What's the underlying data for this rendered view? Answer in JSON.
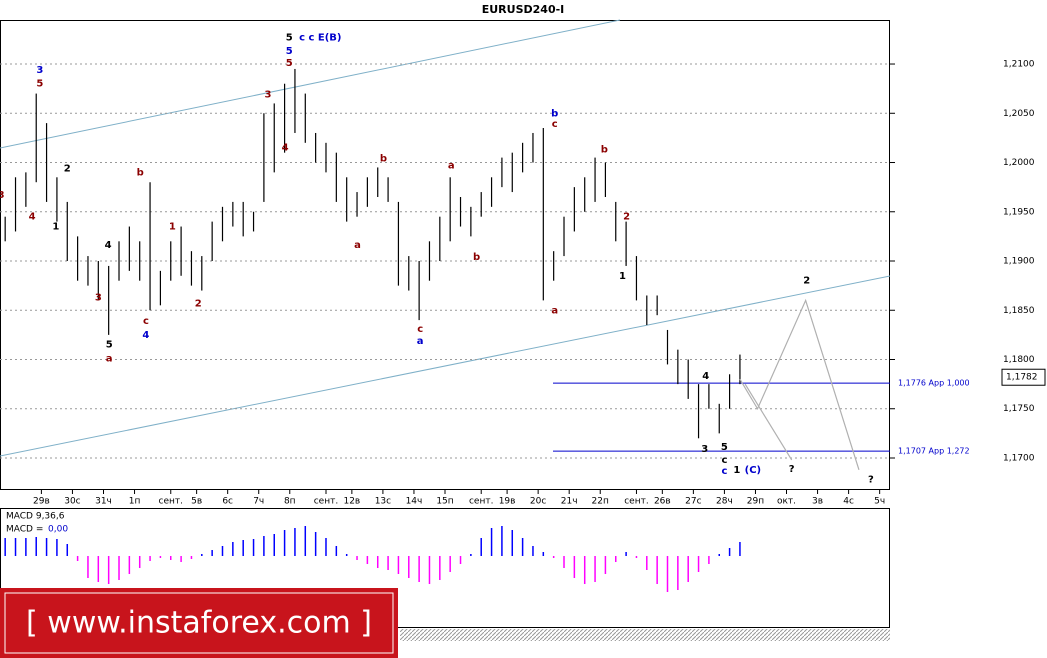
{
  "chart_data": {
    "type": "hilo",
    "title": "EURUSD240-I",
    "color": "#000000",
    "grid": true,
    "x": [
      0,
      2,
      4,
      6,
      8,
      10,
      12,
      14,
      16,
      18,
      20,
      22,
      24,
      26,
      28,
      30,
      32,
      34,
      36,
      38,
      40,
      42,
      44,
      46,
      48,
      50,
      52,
      54,
      56,
      58,
      60,
      62,
      64,
      66,
      68,
      70,
      72,
      74,
      76,
      78,
      80,
      82,
      84,
      86,
      88,
      90,
      92,
      94,
      96,
      98,
      100,
      102,
      104,
      106,
      108,
      110,
      112,
      114,
      116,
      118,
      120,
      122,
      124,
      126,
      128,
      130,
      132,
      134,
      136,
      138,
      140,
      142
    ],
    "high": [
      1.1945,
      1.1985,
      1.199,
      1.207,
      1.204,
      1.1985,
      1.196,
      1.1925,
      1.1905,
      1.19,
      1.1895,
      1.192,
      1.1935,
      1.192,
      1.198,
      1.189,
      1.192,
      1.1935,
      1.191,
      1.1905,
      1.194,
      1.1955,
      1.196,
      1.196,
      1.195,
      1.205,
      1.206,
      1.208,
      1.2095,
      1.207,
      1.203,
      1.202,
      1.201,
      1.1985,
      1.197,
      1.1985,
      1.1995,
      1.1985,
      1.196,
      1.1905,
      1.19,
      1.192,
      1.1945,
      1.1985,
      1.1965,
      1.1955,
      1.197,
      1.1985,
      1.2005,
      1.201,
      1.202,
      1.203,
      1.2035,
      1.191,
      1.1945,
      1.1975,
      1.1985,
      1.2005,
      1.2,
      1.196,
      1.194,
      1.1905,
      1.1865,
      1.1865,
      1.183,
      1.181,
      1.18,
      1.1775,
      1.1775,
      1.1755,
      1.1785,
      1.1805
    ],
    "low": [
      1.192,
      1.193,
      1.1955,
      1.198,
      1.196,
      1.194,
      1.19,
      1.188,
      1.1875,
      1.186,
      1.1825,
      1.188,
      1.189,
      1.188,
      1.185,
      1.1855,
      1.188,
      1.1885,
      1.1875,
      1.187,
      1.19,
      1.192,
      1.1935,
      1.1925,
      1.193,
      1.196,
      1.199,
      1.201,
      1.203,
      1.202,
      1.2,
      1.199,
      1.196,
      1.194,
      1.1945,
      1.1955,
      1.1965,
      1.196,
      1.1875,
      1.187,
      1.184,
      1.188,
      1.19,
      1.192,
      1.1935,
      1.1925,
      1.1945,
      1.1955,
      1.1975,
      1.197,
      1.199,
      1.2,
      1.186,
      1.188,
      1.1905,
      1.193,
      1.195,
      1.196,
      1.1965,
      1.192,
      1.1895,
      1.186,
      1.1835,
      1.1845,
      1.1795,
      1.1775,
      1.176,
      1.172,
      1.175,
      1.1725,
      1.175,
      1.1775
    ],
    "xlim": [
      -1,
      171
    ],
    "ylim": [
      1.16675,
      1.21447
    ],
    "yticks": [
      {
        "value": 1.17,
        "label": "1,1700"
      },
      {
        "value": 1.175,
        "label": "1,1750"
      },
      {
        "value": 1.18,
        "label": "1,1800"
      },
      {
        "value": 1.185,
        "label": "1,1850"
      },
      {
        "value": 1.19,
        "label": "1,1900"
      },
      {
        "value": 1.195,
        "label": "1,1950"
      },
      {
        "value": 1.2,
        "label": "1,2000"
      },
      {
        "value": 1.205,
        "label": "1,2050"
      },
      {
        "value": 1.21,
        "label": "1,2100"
      }
    ],
    "xticks": [
      {
        "value": 7,
        "label": "29в"
      },
      {
        "value": 13,
        "label": "30с"
      },
      {
        "value": 19,
        "label": "31ч"
      },
      {
        "value": 25,
        "label": "1п"
      },
      {
        "value": 32,
        "label": "сент."
      },
      {
        "value": 37,
        "label": "5в"
      },
      {
        "value": 43,
        "label": "6с"
      },
      {
        "value": 49,
        "label": "7ч"
      },
      {
        "value": 55,
        "label": "8п"
      },
      {
        "value": 62,
        "label": "сент."
      },
      {
        "value": 67,
        "label": "12в"
      },
      {
        "value": 73,
        "label": "13с"
      },
      {
        "value": 79,
        "label": "14ч"
      },
      {
        "value": 85,
        "label": "15п"
      },
      {
        "value": 92,
        "label": "сент."
      },
      {
        "value": 97,
        "label": "19в"
      },
      {
        "value": 103,
        "label": "20с"
      },
      {
        "value": 109,
        "label": "21ч"
      },
      {
        "value": 115,
        "label": "22п"
      },
      {
        "value": 122,
        "label": "сент."
      },
      {
        "value": 127,
        "label": "26в"
      },
      {
        "value": 133,
        "label": "27с"
      },
      {
        "value": 139,
        "label": "28ч"
      },
      {
        "value": 145,
        "label": "29п"
      },
      {
        "value": 151,
        "label": "окт."
      },
      {
        "value": 157,
        "label": "3в"
      },
      {
        "value": 163,
        "label": "4с"
      },
      {
        "value": 169,
        "label": "5ч"
      }
    ],
    "last_price": {
      "value": 1.1782,
      "label": "1,1782"
    },
    "levels": [
      {
        "value": 1.1776,
        "label": "1,1776 App 1,000",
        "color": "#0000cc"
      },
      {
        "value": 1.1707,
        "label": "1,1707 App 1,272",
        "color": "#0000cc"
      }
    ],
    "forecast": [
      {
        "x": [
          142,
          145.4,
          154.7,
          165
        ],
        "y": [
          1.178,
          1.175,
          1.186,
          1.1688
        ],
        "color": "#b0b0b0"
      },
      {
        "x": [
          143,
          152
        ],
        "y": [
          1.1775,
          1.1698
        ],
        "color": "#b0b0b0"
      }
    ],
    "annotations": [
      {
        "text": "3",
        "x": 6.7,
        "y": 1.2094,
        "color": "#0000cc"
      },
      {
        "text": "5",
        "x": 6.7,
        "y": 1.208,
        "color": "#8b0000"
      },
      {
        "text": "2",
        "x": 12.0,
        "y": 1.1994,
        "color": "#000000"
      },
      {
        "text": "1",
        "x": 9.8,
        "y": 1.1935,
        "color": "#000000"
      },
      {
        "text": "4",
        "x": 5.2,
        "y": 1.1945,
        "color": "#8b0000"
      },
      {
        "text": "3",
        "x": -0.8,
        "y": 1.1967,
        "color": "#8b0000"
      },
      {
        "text": "4",
        "x": 19.9,
        "y": 1.1916,
        "color": "#000000"
      },
      {
        "text": "3",
        "x": 18.0,
        "y": 1.1863,
        "color": "#8b0000"
      },
      {
        "text": "5",
        "x": 20.1,
        "y": 1.1815,
        "color": "#000000"
      },
      {
        "text": "a",
        "x": 20.1,
        "y": 1.1801,
        "color": "#8b0000"
      },
      {
        "text": "b",
        "x": 26.1,
        "y": 1.199,
        "color": "#8b0000"
      },
      {
        "text": "c",
        "x": 27.2,
        "y": 1.1839,
        "color": "#8b0000"
      },
      {
        "text": "4",
        "x": 27.2,
        "y": 1.1825,
        "color": "#0000cc"
      },
      {
        "text": "1",
        "x": 32.3,
        "y": 1.1935,
        "color": "#8b0000"
      },
      {
        "text": "2",
        "x": 37.3,
        "y": 1.1857,
        "color": "#8b0000"
      },
      {
        "text": "5",
        "x": 54.9,
        "y": 1.2127,
        "color": "#000000"
      },
      {
        "text": "c c E(B)",
        "x": 60.9,
        "y": 1.2127,
        "color": "#0000cc"
      },
      {
        "text": "5",
        "x": 54.9,
        "y": 1.2113,
        "color": "#0000cc"
      },
      {
        "text": "5",
        "x": 54.9,
        "y": 1.2101,
        "color": "#8b0000"
      },
      {
        "text": "3",
        "x": 50.8,
        "y": 1.2069,
        "color": "#8b0000"
      },
      {
        "text": "4",
        "x": 54.1,
        "y": 1.2015,
        "color": "#8b0000"
      },
      {
        "text": "b",
        "x": 73.1,
        "y": 1.2004,
        "color": "#8b0000"
      },
      {
        "text": "a",
        "x": 68.1,
        "y": 1.1916,
        "color": "#8b0000"
      },
      {
        "text": "a",
        "x": 86.2,
        "y": 1.1997,
        "color": "#8b0000"
      },
      {
        "text": "c",
        "x": 80.2,
        "y": 1.1831,
        "color": "#8b0000"
      },
      {
        "text": "a",
        "x": 80.2,
        "y": 1.1819,
        "color": "#0000cc"
      },
      {
        "text": "b",
        "x": 91.1,
        "y": 1.1904,
        "color": "#8b0000"
      },
      {
        "text": "b",
        "x": 106.2,
        "y": 1.205,
        "color": "#0000cc"
      },
      {
        "text": "c",
        "x": 106.2,
        "y": 1.2039,
        "color": "#8b0000"
      },
      {
        "text": "a",
        "x": 106.2,
        "y": 1.185,
        "color": "#8b0000"
      },
      {
        "text": "b",
        "x": 115.8,
        "y": 1.2013,
        "color": "#8b0000"
      },
      {
        "text": "2",
        "x": 120.1,
        "y": 1.1945,
        "color": "#8b0000"
      },
      {
        "text": "1",
        "x": 119.3,
        "y": 1.1885,
        "color": "#000000"
      },
      {
        "text": "4",
        "x": 135.4,
        "y": 1.1783,
        "color": "#000000"
      },
      {
        "text": "3",
        "x": 135.2,
        "y": 1.1709,
        "color": "#000000"
      },
      {
        "text": "5",
        "x": 139.0,
        "y": 1.1711,
        "color": "#000000"
      },
      {
        "text": "c",
        "x": 139.0,
        "y": 1.1698,
        "color": "#000000"
      },
      {
        "text": "c",
        "x": 139.0,
        "y": 1.1687,
        "color": "#0000cc"
      },
      {
        "text": "1",
        "x": 141.4,
        "y": 1.1688,
        "color": "#000000"
      },
      {
        "text": "(C)",
        "x": 144.5,
        "y": 1.1688,
        "color": "#0000cc"
      },
      {
        "text": "2",
        "x": 154.9,
        "y": 1.188,
        "color": "#000000"
      },
      {
        "text": "?",
        "x": 152.0,
        "y": 1.1689,
        "color": "#000000"
      },
      {
        "text": "?",
        "x": 167.3,
        "y": 1.1678,
        "color": "#000000"
      }
    ],
    "indicator": {
      "type": "histogram",
      "label": "MACD 9,36,6",
      "prefix": "MACD =",
      "value_text": "0,00",
      "ylim": [
        -0.0072,
        0.0048
      ],
      "positive_color": "#0000ff",
      "negative_color": "#ff00ff",
      "values": [
        0.0018,
        0.0018,
        0.0018,
        0.0019,
        0.0018,
        0.0017,
        0.0012,
        -0.0005,
        -0.0022,
        -0.0026,
        -0.0028,
        -0.0024,
        -0.0018,
        -0.0012,
        -0.0005,
        -0.0002,
        -0.0004,
        -0.0006,
        -0.0003,
        0.0002,
        0.0006,
        0.001,
        0.0014,
        0.0016,
        0.0017,
        0.002,
        0.0022,
        0.0026,
        0.0028,
        0.003,
        0.0024,
        0.0018,
        0.001,
        0.0002,
        -0.0004,
        -0.0008,
        -0.0012,
        -0.0014,
        -0.0018,
        -0.0022,
        -0.0026,
        -0.0028,
        -0.0024,
        -0.0016,
        -0.0008,
        0.0002,
        0.0018,
        0.0028,
        0.003,
        0.0026,
        0.0018,
        0.001,
        0.0004,
        -0.0002,
        -0.0012,
        -0.0022,
        -0.0028,
        -0.0026,
        -0.0018,
        -0.0006,
        0.0004,
        -0.0002,
        -0.0014,
        -0.0028,
        -0.0036,
        -0.0034,
        -0.0026,
        -0.0016,
        -0.0008,
        0.0002,
        0.0008,
        0.0014
      ]
    },
    "watermark": "[  www.instaforex.com ]"
  }
}
